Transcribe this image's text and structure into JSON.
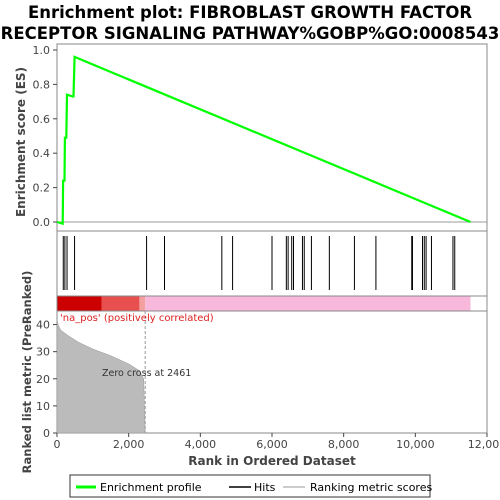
{
  "chart_data": [
    {
      "type": "line",
      "title": "Enrichment plot: FIBROBLAST GROWTH FACTOR RECEPTOR SIGNALING PATHWAY%GOBP%GO:0008543",
      "title_lines": [
        "Enrichment plot: FIBROBLAST GROWTH FACTOR",
        "RECEPTOR SIGNALING PATHWAY%GOBP%GO:0008543"
      ],
      "ylabel": "Enrichment score (ES)",
      "ylim": [
        -0.05,
        1.0
      ],
      "yticks": [
        "0.0",
        "0.2",
        "0.4",
        "0.6",
        "0.8",
        "1.0"
      ],
      "xlim": [
        0,
        12000
      ],
      "grid": false,
      "series": [
        {
          "name": "Enrichment profile",
          "color": "#00ff00",
          "x": [
            0,
            160,
            165,
            170,
            175,
            210,
            220,
            260,
            280,
            430,
            460,
            490,
            11540
          ],
          "y": [
            0.0,
            -0.01,
            0.1,
            0.24,
            0.24,
            0.24,
            0.49,
            0.49,
            0.74,
            0.73,
            0.73,
            0.96,
            0.0
          ]
        }
      ]
    },
    {
      "type": "scatter",
      "series": [
        {
          "name": "Hits",
          "color": "#000000",
          "x": [
            175,
            220,
            280,
            490,
            2500,
            3000,
            4600,
            4900,
            6000,
            6400,
            6450,
            6550,
            6600,
            6850,
            6900,
            7100,
            7600,
            8300,
            8900,
            9900,
            9920,
            10200,
            10250,
            10300,
            10450,
            11050,
            11100
          ]
        }
      ]
    },
    {
      "type": "heatmap",
      "x": [
        0,
        1250,
        2300,
        2461,
        11540
      ],
      "segments": [
        {
          "label": "",
          "color": "#cc0000"
        },
        {
          "label": "",
          "color": "#e85050"
        },
        {
          "label": "",
          "color": "#f4a0a0"
        },
        {
          "label": "",
          "color": "#f7b8dc"
        }
      ],
      "annotations": [
        "'na_pos' (positively correlated)"
      ]
    },
    {
      "type": "area",
      "xlabel": "Rank in Ordered Dataset",
      "ylabel": "Ranked list metric (PreRanked)",
      "xlim": [
        0,
        12000
      ],
      "ylim": [
        0,
        45
      ],
      "xticks": [
        "0",
        "2,000",
        "4,000",
        "6,000",
        "8,000",
        "10,000",
        "12,000"
      ],
      "yticks": [
        "0",
        "10",
        "20",
        "30",
        "40"
      ],
      "x": [
        0,
        30,
        100,
        300,
        600,
        1000,
        1500,
        2000,
        2300,
        2420,
        2461
      ],
      "y": [
        42,
        40,
        38,
        36,
        33.5,
        31,
        28.5,
        25.5,
        23,
        20,
        0
      ],
      "annotations": [
        "Zero cross at 2461"
      ],
      "zero_cross": 2461
    }
  ],
  "legend": {
    "items": [
      {
        "label": "Enrichment profile",
        "color": "#00ff00"
      },
      {
        "label": "Hits",
        "color": "#000000"
      },
      {
        "label": "Ranking metric scores",
        "color": "#bbbbbb"
      }
    ]
  }
}
